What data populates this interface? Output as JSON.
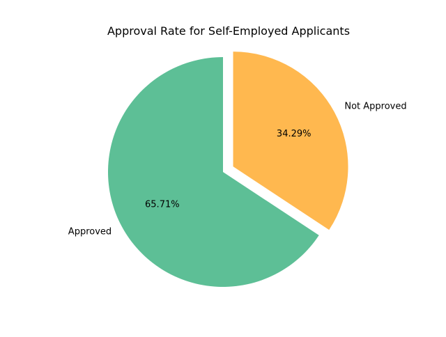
{
  "chart_data": {
    "type": "pie",
    "title": "Approval Rate for Self-Employed Applicants",
    "start_angle_deg": 90,
    "direction": "clockwise",
    "slices": [
      {
        "label": "Not Approved",
        "value": 34.29,
        "pct_label": "34.29%",
        "color": "#ffb84f",
        "exploded": true
      },
      {
        "label": "Approved",
        "value": 65.71,
        "pct_label": "65.71%",
        "color": "#5dbf96",
        "exploded": false
      }
    ]
  }
}
